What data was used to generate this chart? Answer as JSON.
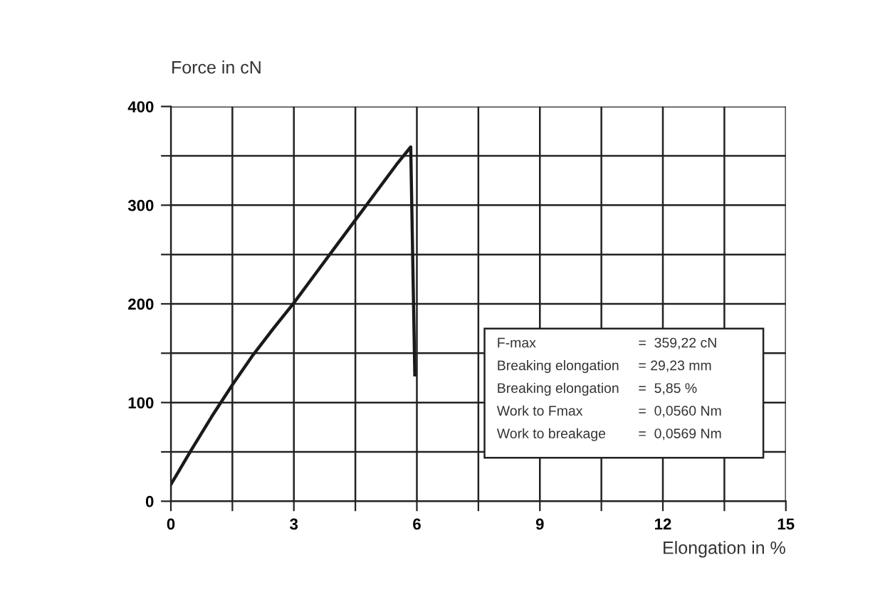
{
  "chart_data": {
    "type": "line",
    "xlabel": "Elongation in %",
    "ylabel": "Force in cN",
    "x": [
      0,
      0.5,
      1,
      1.5,
      2,
      2.5,
      3,
      3.5,
      4,
      4.5,
      5,
      5.5,
      5.85,
      5.95
    ],
    "series": [
      {
        "color": "#1a1a1a",
        "values": [
          17,
          52,
          86,
          118,
          148,
          175,
          201,
          229,
          257,
          285,
          313,
          341,
          359,
          128
        ]
      }
    ],
    "xlim": [
      0,
      15
    ],
    "ylim": [
      0,
      400
    ],
    "xticks": [
      0,
      {
        "value": 1.5,
        "label": null
      },
      3,
      {
        "value": 4.5,
        "label": null
      },
      6,
      {
        "value": 7.5,
        "label": null
      },
      9,
      {
        "value": 10.5,
        "label": null
      },
      12,
      {
        "value": 13.5,
        "label": null
      },
      15
    ],
    "yticks": [
      0,
      {
        "value": 50,
        "label": null
      },
      100,
      {
        "value": 150,
        "label": null
      },
      200,
      {
        "value": 250,
        "label": null
      },
      300,
      {
        "value": 350,
        "label": null
      },
      400
    ],
    "grid": true,
    "legend": false,
    "marker": "none",
    "line_style": "solid",
    "annotations": [
      "F-max",
      "=  359,22 cN",
      "Breaking elongation",
      "= 29,23 mm",
      "Breaking elongation",
      "=  5,85 %",
      "Work to Fmax",
      "=  0,0560 Nm",
      "Work to breakage",
      "=  0,0569 Nm"
    ]
  }
}
